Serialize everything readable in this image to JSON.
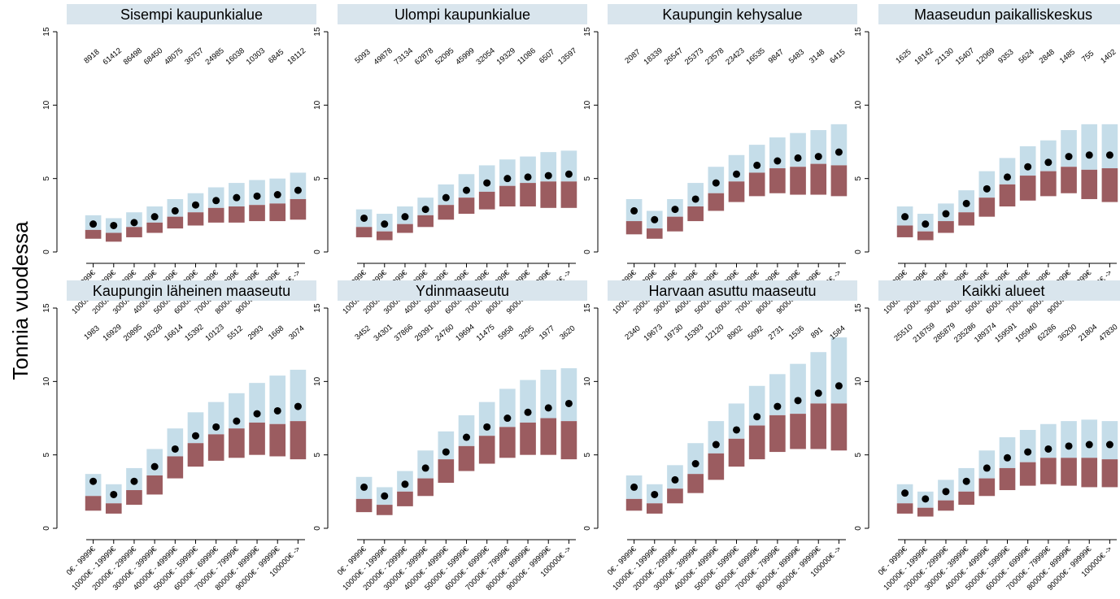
{
  "chart_data": {
    "type": "box",
    "ylabel": "Tonnia vuodessa",
    "ylim": [
      0,
      15
    ],
    "yticks": [
      0,
      5,
      10,
      15
    ],
    "categories": [
      "0€ - 9999€",
      "10000€ - 19999€",
      "20000€ - 29999€",
      "30000€ - 39999€",
      "40000€ - 49999€",
      "50000€ - 59999€",
      "60000€ - 69999€",
      "70000€ - 79999€",
      "80000€ - 89999€",
      "90000€ - 99999€",
      "100000€ ->"
    ],
    "colors": {
      "upper_box": "#c5dde9",
      "lower_box": "#9b5c60",
      "strip": "#d9e5ed",
      "point": "#000000"
    },
    "panels": [
      {
        "title": "Sisempi kaupunkialue",
        "counts": [
          "8918",
          "61412",
          "86498",
          "68450",
          "48075",
          "36757",
          "24985",
          "16038",
          "10303",
          "6845",
          "18112"
        ],
        "q1": [
          0.9,
          0.7,
          1.0,
          1.3,
          1.6,
          1.8,
          2.0,
          2.0,
          2.1,
          2.1,
          2.2
        ],
        "median": [
          1.5,
          1.3,
          1.7,
          2.0,
          2.4,
          2.7,
          3.0,
          3.1,
          3.2,
          3.3,
          3.6
        ],
        "mean": [
          1.9,
          1.8,
          2.0,
          2.4,
          2.8,
          3.2,
          3.5,
          3.7,
          3.8,
          3.9,
          4.2
        ],
        "q3": [
          2.5,
          2.3,
          2.7,
          3.1,
          3.6,
          4.0,
          4.4,
          4.7,
          4.9,
          5.0,
          5.4
        ]
      },
      {
        "title": "Ulompi kaupunkialue",
        "counts": [
          "5093",
          "49878",
          "73134",
          "62878",
          "52095",
          "45999",
          "32054",
          "19329",
          "11086",
          "6507",
          "13597"
        ],
        "q1": [
          1.0,
          0.8,
          1.3,
          1.7,
          2.2,
          2.6,
          2.9,
          3.1,
          3.1,
          3.0,
          3.0
        ],
        "median": [
          1.7,
          1.4,
          1.9,
          2.5,
          3.2,
          3.7,
          4.1,
          4.5,
          4.7,
          4.8,
          4.8
        ],
        "mean": [
          2.3,
          1.9,
          2.4,
          2.9,
          3.7,
          4.2,
          4.7,
          5.0,
          5.1,
          5.2,
          5.3
        ],
        "q3": [
          2.9,
          2.6,
          3.1,
          3.7,
          4.6,
          5.3,
          5.9,
          6.3,
          6.5,
          6.8,
          6.9
        ]
      },
      {
        "title": "Kaupungin kehysalue",
        "counts": [
          "2087",
          "18339",
          "26547",
          "25373",
          "23578",
          "23423",
          "16535",
          "9847",
          "5483",
          "3148",
          "6415"
        ],
        "q1": [
          1.2,
          0.9,
          1.4,
          2.1,
          2.8,
          3.4,
          3.8,
          4.0,
          3.9,
          3.9,
          3.8
        ],
        "median": [
          2.1,
          1.6,
          2.4,
          3.1,
          4.0,
          4.8,
          5.4,
          5.7,
          5.8,
          6.0,
          5.9
        ],
        "mean": [
          2.8,
          2.2,
          2.9,
          3.6,
          4.7,
          5.3,
          5.9,
          6.2,
          6.4,
          6.5,
          6.8
        ],
        "q3": [
          3.6,
          2.8,
          3.6,
          4.7,
          5.8,
          6.6,
          7.3,
          7.8,
          8.1,
          8.3,
          8.7
        ]
      },
      {
        "title": "Maaseudun paikalliskeskus",
        "counts": [
          "1625",
          "18142",
          "21130",
          "15407",
          "12069",
          "9353",
          "5624",
          "2848",
          "1485",
          "755",
          "1402"
        ],
        "q1": [
          1.0,
          0.8,
          1.3,
          1.8,
          2.4,
          3.1,
          3.5,
          3.8,
          4.0,
          3.6,
          3.4
        ],
        "median": [
          1.8,
          1.4,
          2.1,
          2.7,
          3.7,
          4.6,
          5.2,
          5.5,
          5.8,
          5.6,
          5.7
        ],
        "mean": [
          2.4,
          1.9,
          2.6,
          3.3,
          4.3,
          5.1,
          5.8,
          6.1,
          6.5,
          6.6,
          6.6
        ],
        "q3": [
          3.1,
          2.6,
          3.3,
          4.2,
          5.5,
          6.4,
          7.2,
          7.6,
          8.3,
          8.7,
          8.7
        ]
      },
      {
        "title": "Kaupungin läheinen maaseutu",
        "counts": [
          "1983",
          "16929",
          "20895",
          "18328",
          "16614",
          "15392",
          "10123",
          "5512",
          "2993",
          "1668",
          "3074"
        ],
        "q1": [
          1.2,
          1.0,
          1.6,
          2.3,
          3.4,
          4.2,
          4.6,
          4.8,
          5.0,
          4.9,
          4.7
        ],
        "median": [
          2.2,
          1.7,
          2.6,
          3.6,
          4.9,
          5.8,
          6.4,
          6.8,
          7.2,
          7.1,
          7.3
        ],
        "mean": [
          3.2,
          2.3,
          3.2,
          4.2,
          5.4,
          6.3,
          6.9,
          7.3,
          7.8,
          8.0,
          8.3
        ],
        "q3": [
          3.7,
          3.0,
          4.1,
          5.4,
          6.8,
          7.9,
          8.6,
          9.2,
          9.9,
          10.4,
          10.8
        ]
      },
      {
        "title": "Ydinmaaseutu",
        "counts": [
          "3452",
          "34301",
          "37866",
          "29391",
          "24760",
          "19694",
          "11475",
          "5958",
          "3295",
          "1977",
          "3620"
        ],
        "q1": [
          1.1,
          0.9,
          1.5,
          2.2,
          3.1,
          3.9,
          4.4,
          4.8,
          5.0,
          5.0,
          4.7
        ],
        "median": [
          2.0,
          1.6,
          2.5,
          3.4,
          4.7,
          5.6,
          6.3,
          6.9,
          7.2,
          7.5,
          7.3
        ],
        "mean": [
          2.8,
          2.2,
          3.0,
          4.1,
          5.2,
          6.2,
          6.9,
          7.5,
          7.9,
          8.2,
          8.5
        ],
        "q3": [
          3.5,
          2.8,
          3.9,
          5.3,
          6.6,
          7.7,
          8.6,
          9.5,
          10.1,
          10.8,
          10.9
        ]
      },
      {
        "title": "Harvaan asuttu maaseutu",
        "counts": [
          "2340",
          "19673",
          "19730",
          "15393",
          "12120",
          "8902",
          "5092",
          "2731",
          "1536",
          "891",
          "1584"
        ],
        "q1": [
          1.2,
          1.0,
          1.7,
          2.4,
          3.3,
          4.2,
          4.7,
          5.2,
          5.4,
          5.4,
          5.3
        ],
        "median": [
          2.0,
          1.7,
          2.7,
          3.7,
          5.1,
          6.1,
          7.0,
          7.7,
          7.8,
          8.5,
          8.5
        ],
        "mean": [
          2.8,
          2.3,
          3.3,
          4.4,
          5.7,
          6.7,
          7.6,
          8.3,
          8.7,
          9.2,
          9.7
        ],
        "q3": [
          3.6,
          3.0,
          4.3,
          5.8,
          7.3,
          8.5,
          9.7,
          10.5,
          11.2,
          12.0,
          13.0
        ]
      },
      {
        "title": "Kaikki alueet",
        "counts": [
          "25510",
          "218759",
          "285879",
          "235286",
          "189374",
          "159591",
          "105940",
          "62286",
          "36200",
          "21804",
          "47830"
        ],
        "q1": [
          1.0,
          0.8,
          1.2,
          1.6,
          2.2,
          2.6,
          2.9,
          3.0,
          2.9,
          2.8,
          2.8
        ],
        "median": [
          1.7,
          1.4,
          1.9,
          2.5,
          3.4,
          4.1,
          4.5,
          4.8,
          4.8,
          4.8,
          4.7
        ],
        "mean": [
          2.4,
          2.0,
          2.5,
          3.2,
          4.1,
          4.8,
          5.2,
          5.4,
          5.6,
          5.7,
          5.7
        ],
        "q3": [
          3.0,
          2.5,
          3.3,
          4.1,
          5.3,
          6.2,
          6.7,
          7.1,
          7.3,
          7.4,
          7.3
        ]
      }
    ]
  }
}
